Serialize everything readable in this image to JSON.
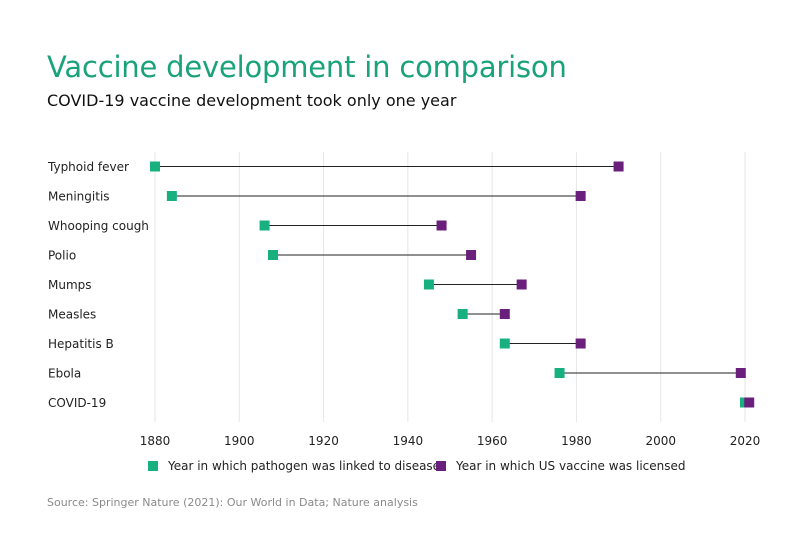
{
  "colors": {
    "linked": "#19b07f",
    "licensed": "#6b1f7c",
    "connector": "#222222",
    "grid": "#e6e6e6"
  },
  "chart_data": {
    "type": "dumbbell",
    "title": "Vaccine development in comparison",
    "subtitle": "COVID-19 vaccine development took only one year",
    "xlim": [
      1880,
      2020
    ],
    "xticks": [
      1880,
      1900,
      1920,
      1940,
      1960,
      1980,
      2000,
      2020
    ],
    "grid": "vertical",
    "legend_placement": "bottom",
    "legend": {
      "linked": "Year in which pathogen was linked to disease",
      "licensed": "Year in which US vaccine was licensed"
    },
    "categories": [
      "Typhoid fever",
      "Meningitis",
      "Whooping cough",
      "Polio",
      "Mumps",
      "Measles",
      "Hepatitis B",
      "Ebola",
      "COVID-19"
    ],
    "series": [
      {
        "name": "Year in which pathogen was linked to disease",
        "values": [
          1880,
          1884,
          1906,
          1908,
          1945,
          1953,
          1963,
          1976,
          2020
        ]
      },
      {
        "name": "Year in which US vaccine was licensed",
        "values": [
          1990,
          1981,
          1948,
          1955,
          1967,
          1963,
          1981,
          2019,
          2021
        ]
      }
    ]
  },
  "source": "Source: Springer Nature (2021): Our World in Data; Nature analysis"
}
